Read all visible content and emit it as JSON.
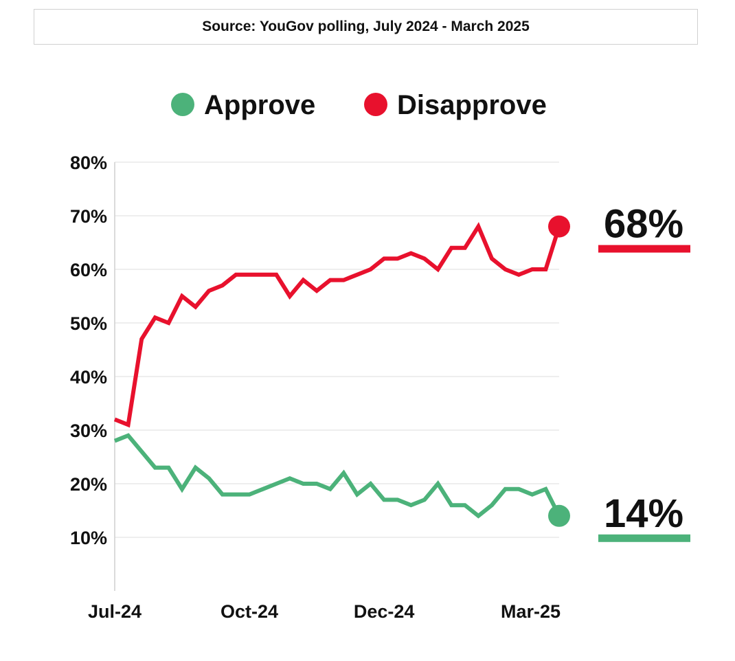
{
  "source": {
    "text": "Source: YouGov polling, July 2024 - March 2025"
  },
  "colors": {
    "approve": "#4cb27a",
    "disapprove": "#e8112d",
    "grid": "#e3e3e3",
    "axis": "#cfcfcf"
  },
  "chart_data": {
    "type": "line",
    "title": "",
    "xlabel": "",
    "ylabel": "",
    "ylim": [
      0,
      80
    ],
    "y_ticks": [
      10,
      20,
      30,
      40,
      50,
      60,
      70,
      80
    ],
    "y_tick_labels": [
      "10%",
      "20%",
      "30%",
      "40%",
      "50%",
      "60%",
      "70%",
      "80%"
    ],
    "x_tick_labels": [
      "Jul-24",
      "Oct-24",
      "Dec-24",
      "Mar-25"
    ],
    "x_tick_index": [
      0,
      10,
      20,
      33
    ],
    "grid": true,
    "legend_position": "top",
    "series": [
      {
        "name": "Approve",
        "color_key": "approve",
        "values": [
          28,
          29,
          26,
          23,
          23,
          19,
          23,
          21,
          18,
          18,
          18,
          19,
          20,
          21,
          20,
          20,
          19,
          22,
          18,
          20,
          17,
          17,
          16,
          17,
          20,
          16,
          16,
          14,
          16,
          19,
          19,
          18,
          19,
          14
        ],
        "end_label": "14%"
      },
      {
        "name": "Disapprove",
        "color_key": "disapprove",
        "values": [
          32,
          31,
          47,
          51,
          50,
          55,
          53,
          56,
          57,
          59,
          59,
          59,
          59,
          55,
          58,
          56,
          58,
          58,
          59,
          60,
          62,
          62,
          63,
          62,
          60,
          64,
          64,
          68,
          62,
          60,
          59,
          60,
          60,
          68
        ],
        "end_label": "68%"
      }
    ]
  }
}
